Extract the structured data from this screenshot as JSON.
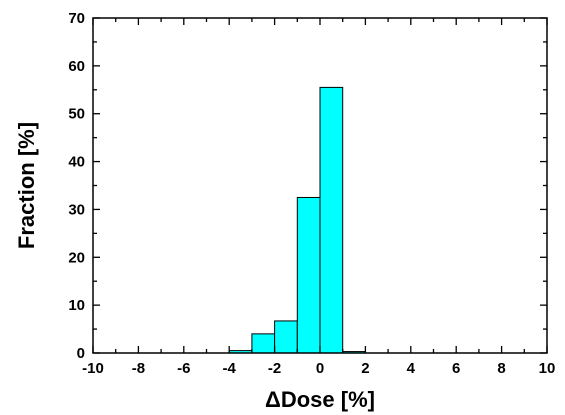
{
  "chart_data": {
    "type": "bar",
    "title": "",
    "xlabel": "ΔDose [%]",
    "ylabel": "Fraction [%]",
    "xlim": [
      -10,
      10
    ],
    "ylim": [
      0,
      70
    ],
    "xticks": [
      -10,
      -8,
      -6,
      -4,
      -2,
      0,
      2,
      4,
      6,
      8,
      10
    ],
    "yticks": [
      0,
      10,
      20,
      30,
      40,
      50,
      60,
      70
    ],
    "bin_width": 1,
    "bins": [
      {
        "start": -4,
        "end": -3,
        "value": 0.5
      },
      {
        "start": -3,
        "end": -2,
        "value": 4.0
      },
      {
        "start": -2,
        "end": -1,
        "value": 6.7
      },
      {
        "start": -1,
        "end": 0,
        "value": 32.5
      },
      {
        "start": 0,
        "end": 1,
        "value": 55.5
      },
      {
        "start": 1,
        "end": 2,
        "value": 0.3
      }
    ],
    "bar_color": "#00ffff",
    "bar_edge_color": "#000000",
    "grid": false,
    "legend": "none"
  }
}
